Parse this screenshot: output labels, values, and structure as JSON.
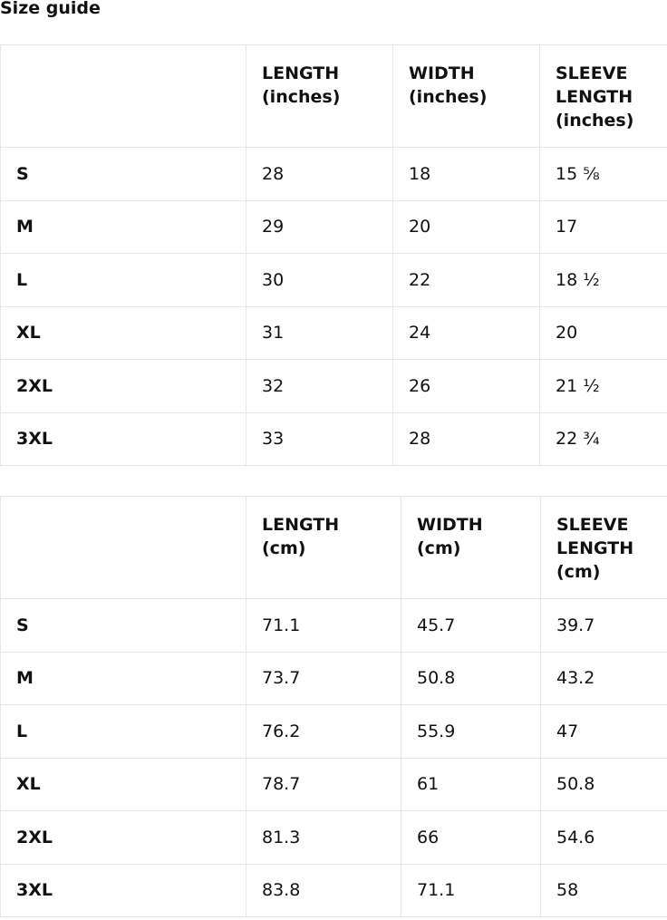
{
  "title": "Size guide",
  "tables": [
    {
      "headers": [
        "",
        "LENGTH\n(inches)",
        "WIDTH\n(inches)",
        "SLEEVE\nLENGTH\n(inches)"
      ],
      "rows": [
        [
          "S",
          "28",
          "18",
          "15 ⅝"
        ],
        [
          "M",
          "29",
          "20",
          "17"
        ],
        [
          "L",
          "30",
          "22",
          "18 ½"
        ],
        [
          "XL",
          "31",
          "24",
          "20"
        ],
        [
          "2XL",
          "32",
          "26",
          "21 ½"
        ],
        [
          "3XL",
          "33",
          "28",
          "22 ¾"
        ]
      ]
    },
    {
      "headers": [
        "",
        "LENGTH\n(cm)",
        "WIDTH\n(cm)",
        "SLEEVE\nLENGTH\n(cm)"
      ],
      "rows": [
        [
          "S",
          "71.1",
          "45.7",
          "39.7"
        ],
        [
          "M",
          "73.7",
          "50.8",
          "43.2"
        ],
        [
          "L",
          "76.2",
          "55.9",
          "47"
        ],
        [
          "XL",
          "78.7",
          "61",
          "50.8"
        ],
        [
          "2XL",
          "81.3",
          "66",
          "54.6"
        ],
        [
          "3XL",
          "83.8",
          "71.1",
          "58"
        ]
      ]
    }
  ]
}
